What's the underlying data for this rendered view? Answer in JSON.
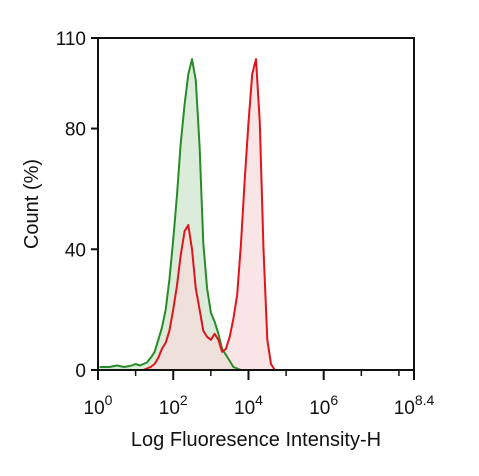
{
  "chart_data": {
    "type": "area",
    "xlabel": "Log Fluoresence Intensity-H",
    "ylabel": "Count  (%)",
    "x_scale": "log10",
    "xlim": [
      1,
      251188643
    ],
    "ylim": [
      0,
      110
    ],
    "x_ticks": [
      {
        "value": 1,
        "base": "10",
        "exp": "0"
      },
      {
        "value": 100,
        "base": "10",
        "exp": "2"
      },
      {
        "value": 10000,
        "base": "10",
        "exp": "4"
      },
      {
        "value": 1000000,
        "base": "10",
        "exp": "6"
      },
      {
        "value": 251188643,
        "base": "10",
        "exp": "8.4"
      }
    ],
    "y_ticks": [
      0,
      40,
      80,
      110
    ],
    "grid": false,
    "series": [
      {
        "color": "#2a8a2a",
        "fill": "#cfe6cf",
        "x": [
          1.1,
          2,
          3.2,
          5,
          7.9,
          10,
          13,
          16,
          20,
          25,
          32,
          40,
          50,
          63,
          79,
          100,
          126,
          158,
          200,
          251,
          316,
          398,
          501,
          631,
          794,
          1000,
          1259,
          1585,
          1995,
          2512,
          3162,
          3981,
          5012,
          6310
        ],
        "y": [
          1,
          1,
          1.5,
          1,
          1.5,
          2,
          1.5,
          2,
          2.5,
          4,
          6,
          10,
          14,
          20,
          30,
          43,
          58,
          75,
          88,
          98,
          103,
          96,
          74,
          42,
          27,
          19,
          16,
          12,
          7,
          5,
          3,
          1,
          0.5,
          0
        ]
      },
      {
        "color": "#e0141b",
        "fill": "#f7dcdc",
        "x": [
          16,
          25,
          32,
          40,
          50,
          63,
          79,
          100,
          126,
          158,
          200,
          251,
          316,
          398,
          501,
          631,
          794,
          1000,
          1259,
          1585,
          1995,
          2512,
          3162,
          3981,
          5012,
          6310,
          7943,
          10000,
          12589,
          15849,
          19953,
          25119,
          31623,
          39811,
          50119
        ],
        "y": [
          0,
          1,
          2,
          4,
          7,
          9,
          13,
          20,
          28,
          38,
          46,
          48,
          40,
          27,
          20,
          13,
          11,
          10,
          12,
          10,
          6,
          7,
          11,
          17,
          25,
          42,
          63,
          82,
          98,
          103,
          82,
          40,
          10,
          2,
          0
        ]
      }
    ]
  }
}
